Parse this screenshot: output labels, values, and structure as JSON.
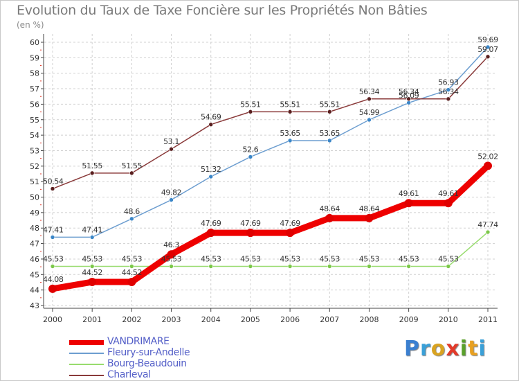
{
  "title": "Evolution du Taux de Taxe Foncière sur les Propriétés Non Bâties",
  "subtitle": "(en %)",
  "brand": {
    "text": "Proxiti",
    "letter_colors": [
      "#3a7fd0",
      "#3aa0d8",
      "#d9a321",
      "#e23a2a",
      "#5aa02c",
      "#e8a020",
      "#3aa0d8"
    ]
  },
  "chart_data": {
    "type": "line",
    "title": "Evolution du Taux de Taxe Foncière sur les Propriétés Non Bâties",
    "ylabel": "(en %)",
    "xlabel": "",
    "ylim": [
      43,
      60
    ],
    "yticks": [
      43,
      44,
      45,
      46,
      47,
      48,
      49,
      50,
      51,
      52,
      53,
      54,
      55,
      56,
      57,
      58,
      59,
      60
    ],
    "x": [
      "2000",
      "2001",
      "2002",
      "2003",
      "2004",
      "2005",
      "2006",
      "2007",
      "2008",
      "2009",
      "2010",
      "2011"
    ],
    "grid": true,
    "legend_position": "bottom-left",
    "series": [
      {
        "name": "VANDRIMARE",
        "color": "#ee0000",
        "values": [
          44.08,
          44.52,
          44.52,
          46.3,
          47.69,
          47.69,
          47.69,
          48.64,
          48.64,
          49.61,
          49.61,
          52.02
        ],
        "labels": [
          "44.08",
          "44.52",
          "44.52",
          "46.3",
          "47.69",
          "47.69",
          "47.69",
          "48.64",
          "48.64",
          "49.61",
          "49.61",
          "52.02"
        ]
      },
      {
        "name": "Fleury-sur-Andelle",
        "color": "#6d9ed0",
        "values": [
          47.41,
          47.41,
          48.6,
          49.82,
          51.32,
          52.6,
          53.65,
          53.65,
          54.99,
          56.09,
          56.93,
          59.69
        ],
        "labels": [
          "47.41",
          "47.41",
          "48.6",
          "49.82",
          "51.32",
          "52.6",
          "53.65",
          "53.65",
          "54.99",
          "56.09",
          "56.93",
          "59.69"
        ]
      },
      {
        "name": "Bourg-Beaudouin",
        "color": "#98dc6e",
        "values": [
          45.53,
          45.53,
          45.53,
          45.53,
          45.53,
          45.53,
          45.53,
          45.53,
          45.53,
          45.53,
          45.53,
          47.74
        ],
        "labels": [
          "45.53",
          "45.53",
          "45.53",
          "45.53",
          "45.53",
          "45.53",
          "45.53",
          "45.53",
          "45.53",
          "45.53",
          "45.53",
          "47.74"
        ]
      },
      {
        "name": "Charleval",
        "color": "#8a3a3a",
        "values": [
          50.54,
          51.55,
          51.55,
          53.1,
          54.69,
          55.51,
          55.51,
          55.51,
          56.34,
          56.34,
          56.34,
          59.07
        ],
        "labels": [
          "50.54",
          "51.55",
          "51.55",
          "53.1",
          "54.69",
          "55.51",
          "55.51",
          "55.51",
          "56.34",
          "56.34",
          "56.34",
          "59.07"
        ]
      }
    ]
  }
}
